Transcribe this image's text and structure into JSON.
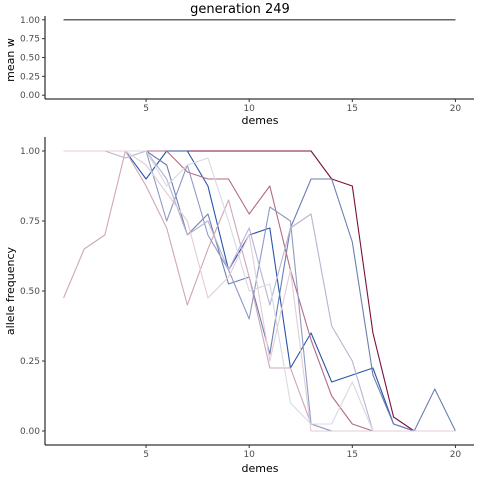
{
  "chart_data": [
    {
      "type": "line",
      "title": "generation 249",
      "xlabel": "demes",
      "ylabel": "mean w",
      "xlim": [
        0.1,
        20.9
      ],
      "ylim": [
        -0.05,
        1.05
      ],
      "xticks": [
        5,
        10,
        15,
        20
      ],
      "xtick_labels": [
        "5",
        "10",
        "15",
        "20"
      ],
      "yticks": [
        0,
        0.25,
        0.5,
        0.75,
        1
      ],
      "ytick_labels": [
        "0.00",
        "0.25",
        "0.50",
        "0.75",
        "1.00"
      ],
      "grid": false,
      "series": [
        {
          "color": "#333333",
          "x": [
            1,
            20
          ],
          "y": [
            1,
            1
          ]
        }
      ]
    },
    {
      "type": "line",
      "xlabel": "demes",
      "ylabel": "allele frequency",
      "xlim": [
        0.1,
        20.9
      ],
      "ylim": [
        -0.05,
        1.05
      ],
      "xticks": [
        5,
        10,
        15,
        20
      ],
      "xtick_labels": [
        "5",
        "10",
        "15",
        "20"
      ],
      "yticks": [
        0,
        0.25,
        0.5,
        0.75,
        1
      ],
      "ytick_labels": [
        "0.00",
        "0.25",
        "0.50",
        "0.75",
        "1.00"
      ],
      "grid": false,
      "series": [
        {
          "color": "#7a1040",
          "opacity": 1.0,
          "x": [
            1,
            2,
            3,
            4,
            5,
            6,
            7,
            8,
            9,
            10,
            11,
            12,
            13,
            14,
            15,
            16,
            17,
            18,
            19,
            20
          ],
          "y": [
            1,
            1,
            1,
            1,
            1,
            1,
            1,
            1,
            1,
            1,
            1,
            1,
            1,
            0.9,
            0.875,
            0.35,
            0.05,
            0,
            0,
            0
          ]
        },
        {
          "color": "#2a55a8",
          "opacity": 1.0,
          "x": [
            1,
            2,
            3,
            4,
            5,
            6,
            7,
            8,
            9,
            10,
            11,
            12,
            13,
            14,
            15,
            16,
            17,
            18,
            19,
            20
          ],
          "y": [
            1,
            1,
            1,
            1,
            0.9,
            1,
            1,
            0.875,
            0.575,
            0.7,
            0.725,
            0.225,
            0.35,
            0.175,
            0.2,
            0.225,
            0.025,
            0,
            0,
            0
          ]
        },
        {
          "color": "#6b7fb0",
          "opacity": 1.0,
          "x": [
            1,
            2,
            3,
            4,
            5,
            6,
            7,
            8,
            9,
            10,
            11,
            12,
            13,
            14,
            15,
            16,
            17,
            18,
            19,
            20
          ],
          "y": [
            1,
            1,
            1,
            1,
            1,
            0.95,
            0.7,
            0.775,
            0.525,
            0.55,
            0.275,
            0.725,
            0.9,
            0.9,
            0.675,
            0.2,
            0.025,
            0,
            0.15,
            0
          ]
        },
        {
          "color": "#b56a84",
          "opacity": 1.0,
          "x": [
            1,
            2,
            3,
            4,
            5,
            6,
            7,
            8,
            9,
            10,
            11,
            12,
            13,
            14,
            15,
            16,
            17,
            18,
            19,
            20
          ],
          "y": [
            1,
            1,
            1,
            1,
            1,
            1,
            0.925,
            0.9,
            0.9,
            0.775,
            0.875,
            0.575,
            0.325,
            0.125,
            0.025,
            0,
            0,
            0,
            0,
            0
          ]
        },
        {
          "color": "#cfa7b8",
          "opacity": 1.0,
          "x": [
            1,
            2,
            3,
            4,
            5,
            6,
            7,
            8,
            9,
            10,
            11,
            12,
            13,
            14,
            15,
            16,
            17,
            18,
            19,
            20
          ],
          "y": [
            0.475,
            0.65,
            0.7,
            1,
            0.875,
            0.725,
            0.45,
            0.65,
            0.825,
            0.55,
            0.225,
            0.225,
            0.025,
            0,
            0,
            0,
            0,
            0,
            0,
            0
          ]
        },
        {
          "color": "#8e9ac4",
          "opacity": 1.0,
          "x": [
            1,
            2,
            3,
            4,
            5,
            6,
            7,
            8,
            9,
            10,
            11,
            12,
            13,
            14,
            15,
            16,
            17,
            18,
            19,
            20
          ],
          "y": [
            1,
            1,
            1,
            1,
            1,
            0.75,
            0.95,
            0.7,
            0.575,
            0.4,
            0.8,
            0.75,
            0.025,
            0,
            0,
            0,
            0,
            0,
            0,
            0
          ]
        },
        {
          "color": "#b9b3d4",
          "opacity": 1.0,
          "x": [
            1,
            2,
            3,
            4,
            5,
            6,
            7,
            8,
            9,
            10,
            11,
            12,
            13,
            14,
            15,
            16,
            17,
            18,
            19,
            20
          ],
          "y": [
            1,
            1,
            1,
            0.975,
            1,
            0.9,
            0.7,
            0.75,
            0.575,
            0.725,
            0.45,
            0.725,
            0.775,
            0.375,
            0.25,
            0,
            0,
            0,
            0,
            0
          ]
        },
        {
          "color": "#d8d8e4",
          "opacity": 1.0,
          "x": [
            1,
            2,
            3,
            4,
            5,
            6,
            7,
            8,
            9,
            10,
            11,
            12,
            13,
            14,
            15,
            16,
            17,
            18,
            19,
            20
          ],
          "y": [
            1,
            1,
            1,
            1,
            1,
            0.875,
            0.95,
            0.975,
            0.75,
            0.5,
            0.525,
            0.1,
            0.025,
            0.025,
            0.175,
            0,
            0,
            0,
            0,
            0
          ]
        },
        {
          "color": "#e3cdd6",
          "opacity": 1.0,
          "x": [
            1,
            2,
            3,
            4,
            5,
            6,
            7,
            8,
            9,
            10,
            11,
            12,
            13,
            14,
            15,
            16,
            17,
            18,
            19,
            20
          ],
          "y": [
            1,
            1,
            1,
            1,
            0.95,
            0.85,
            0.75,
            0.475,
            0.55,
            0.7,
            0.25,
            0.575,
            0,
            0,
            0,
            0,
            0,
            0,
            0,
            0
          ]
        }
      ]
    }
  ]
}
